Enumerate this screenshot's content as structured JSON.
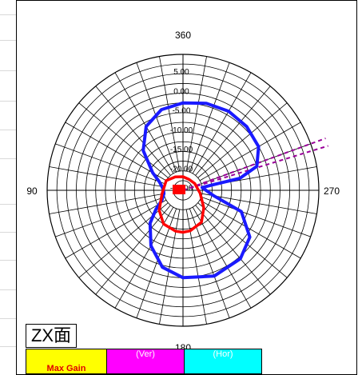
{
  "chart_data": {
    "type": "polar",
    "angle_labels": {
      "top": "360",
      "left": "90",
      "right": "270",
      "bottom": "180"
    },
    "radial_labels": [
      "5.00",
      "0.00",
      "-5.00",
      "-10.00",
      "-15.00",
      "-20.00",
      "-25.00"
    ],
    "radial_range": [
      -30,
      5
    ],
    "colors": {
      "ver": "#1a1aff",
      "hor": "#ff0000",
      "max_gain_marker": "#990099"
    }
  },
  "panel": {
    "plane_label": "ZX面"
  },
  "legend": {
    "max_gain_label": "Max Gain",
    "ver_label": "(Ver)",
    "hor_label": "(Hor)"
  }
}
